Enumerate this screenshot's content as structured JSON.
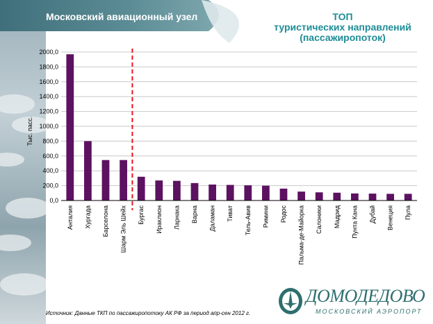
{
  "header": {
    "title": "Московский авиационный узел"
  },
  "chart_title": [
    "ТОП",
    "туристических направлений",
    "(пассажиропоток)"
  ],
  "chart_data": {
    "type": "bar",
    "ylabel": "Тыс. пасс.",
    "xlabel": "",
    "ylim": [
      0,
      2000
    ],
    "yticks": [
      "0,0",
      "200,0",
      "400,0",
      "600,0",
      "800,0",
      "1000,0",
      "1200,0",
      "1400,0",
      "1600,0",
      "1800,0",
      "2000,0"
    ],
    "categories": [
      "Анталия",
      "Хургада",
      "Барселона",
      "Шарм Эль Шейх",
      "Бургас",
      "Ираклион",
      "Ларнака",
      "Варна",
      "Даламан",
      "Тиват",
      "Тель-Авив",
      "Римини",
      "Родос",
      "Пальма-де-Майорка",
      "Салоники",
      "Мадрид",
      "Пунта Кана",
      "Дубай",
      "Венеция",
      "Пула"
    ],
    "values": [
      1970,
      800,
      545,
      545,
      320,
      270,
      265,
      235,
      215,
      210,
      205,
      200,
      160,
      120,
      110,
      105,
      95,
      93,
      90,
      90
    ],
    "grid": true,
    "bar_color": "#5c1260",
    "divider_after_index": 3,
    "divider_color": "#e8141c"
  },
  "source_note": "Источник: Данные ТКП по пассажиропотоку АК РФ за период апр-сен 2012 г.",
  "logo": {
    "name": "ДОМОДЕДОВО",
    "subtitle": "МОСКОВСКИЙ АЭРОПОРТ",
    "color": "#2e6e6e"
  },
  "colors": {
    "header_bg": "#4d7f89",
    "title_color": "#1c8c96"
  }
}
